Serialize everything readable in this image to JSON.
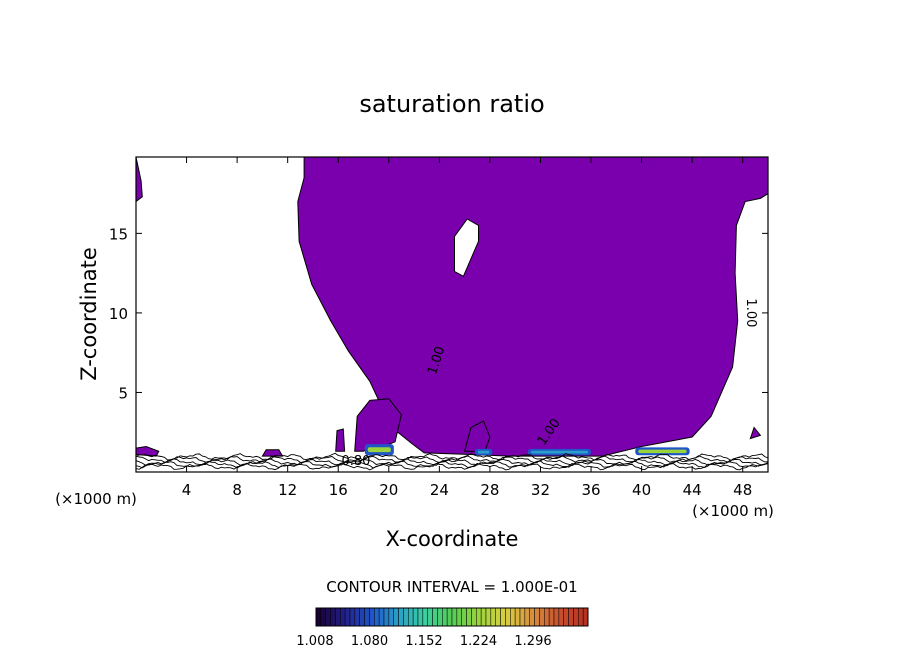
{
  "chart_data": {
    "type": "heatmap",
    "title": "saturation ratio",
    "xlabel": "X-coordinate",
    "ylabel": "Z-coordinate",
    "x_unit_left": "(×1000 m)",
    "x_unit_right": "(×1000 m)",
    "xlim": [
      0,
      50
    ],
    "ylim": [
      0,
      19.8
    ],
    "x_ticks": [
      4,
      8,
      12,
      16,
      20,
      24,
      28,
      32,
      36,
      40,
      44,
      48
    ],
    "x_tick_labels": [
      "4",
      "8",
      "12",
      "16",
      "20",
      "24",
      "28",
      "32",
      "36",
      "40",
      "44",
      "48"
    ],
    "y_ticks": [
      5,
      10,
      15
    ],
    "y_tick_labels": [
      "5",
      "10",
      "15"
    ],
    "contour_interval_text": "CONTOUR INTERVAL = 1.000E-01",
    "contour_labels": [
      {
        "text": "1.00",
        "x": 23.8,
        "z": 7.0,
        "angle": -72
      },
      {
        "text": "1.00",
        "x": 32.7,
        "z": 2.5,
        "angle": -55
      },
      {
        "text": "1.00",
        "x": 48.6,
        "z": 10.0,
        "angle": 90
      },
      {
        "text": "0.80",
        "x": 17.4,
        "z": 0.65,
        "angle": 0
      }
    ],
    "colorbar": {
      "tick_labels": [
        "1.008",
        "1.080",
        "1.152",
        "1.224",
        "1.296"
      ],
      "min": 1.008,
      "max": 1.332,
      "colors": [
        "#1a0033",
        "#23208a",
        "#1f55c8",
        "#2aa0c8",
        "#3ccfa0",
        "#55cc55",
        "#9ad43c",
        "#d8d040",
        "#d89040",
        "#c85030",
        "#b83020"
      ]
    },
    "fill_color": "#7a00ad",
    "regions": {
      "saturated_main": [
        [
          13.3,
          19.8
        ],
        [
          13.3,
          18.5
        ],
        [
          12.8,
          17.0
        ],
        [
          12.9,
          14.5
        ],
        [
          13.9,
          11.8
        ],
        [
          15.4,
          9.5
        ],
        [
          16.8,
          7.6
        ],
        [
          18.5,
          5.7
        ],
        [
          19.5,
          4.0
        ],
        [
          20.4,
          2.7
        ],
        [
          21.8,
          1.8
        ],
        [
          22.8,
          1.2
        ],
        [
          26.5,
          1.1
        ],
        [
          29.5,
          1.0
        ],
        [
          36.9,
          1.0
        ],
        [
          40.0,
          1.6
        ],
        [
          44.0,
          2.2
        ],
        [
          45.5,
          3.5
        ],
        [
          47.2,
          6.6
        ],
        [
          47.6,
          9.5
        ],
        [
          47.4,
          12.5
        ],
        [
          47.5,
          15.5
        ],
        [
          48.2,
          17.0
        ],
        [
          49.4,
          17.2
        ],
        [
          50.0,
          17.5
        ],
        [
          50.0,
          19.8
        ]
      ],
      "hole": [
        [
          25.2,
          14.8
        ],
        [
          26.2,
          15.9
        ],
        [
          27.1,
          15.5
        ],
        [
          27.1,
          14.5
        ],
        [
          25.9,
          12.3
        ],
        [
          25.2,
          12.6
        ]
      ],
      "cells": [
        [
          [
            17.3,
            1.3
          ],
          [
            17.5,
            3.5
          ],
          [
            18.5,
            4.5
          ],
          [
            20.0,
            4.6
          ],
          [
            21.0,
            3.6
          ],
          [
            20.5,
            1.9
          ],
          [
            19.6,
            1.6
          ],
          [
            18.6,
            1.6
          ],
          [
            18.0,
            1.3
          ]
        ],
        [
          [
            26.0,
            1.3
          ],
          [
            26.5,
            2.8
          ],
          [
            27.5,
            3.2
          ],
          [
            28.0,
            2.2
          ],
          [
            27.6,
            1.3
          ]
        ],
        [
          [
            15.8,
            1.3
          ],
          [
            15.9,
            2.6
          ],
          [
            16.4,
            2.7
          ],
          [
            16.5,
            1.3
          ]
        ],
        [
          [
            0.0,
            1.1
          ],
          [
            0.0,
            1.5
          ],
          [
            0.8,
            1.6
          ],
          [
            1.8,
            1.3
          ],
          [
            1.6,
            1.0
          ]
        ],
        [
          [
            0.0,
            17.0
          ],
          [
            0.0,
            19.8
          ],
          [
            0.4,
            18.3
          ],
          [
            0.5,
            17.3
          ]
        ],
        [
          [
            10.0,
            1.0
          ],
          [
            10.3,
            1.4
          ],
          [
            11.3,
            1.4
          ],
          [
            11.6,
            1.0
          ]
        ],
        [
          [
            48.6,
            2.1
          ],
          [
            48.9,
            2.8
          ],
          [
            49.4,
            2.3
          ]
        ]
      ],
      "high_patches": [
        {
          "x": [
            18.1,
            20.4
          ],
          "z": [
            1.05,
            1.75
          ],
          "peak": 1.15
        },
        {
          "x": [
            26.8,
            28.2
          ],
          "z": [
            1.05,
            1.45
          ],
          "peak": 1.05
        },
        {
          "x": [
            31.0,
            36.0
          ],
          "z": [
            1.05,
            1.45
          ],
          "peak": 1.08
        },
        {
          "x": [
            39.5,
            43.8
          ],
          "z": [
            1.05,
            1.55
          ],
          "peak": 1.2
        }
      ]
    }
  }
}
